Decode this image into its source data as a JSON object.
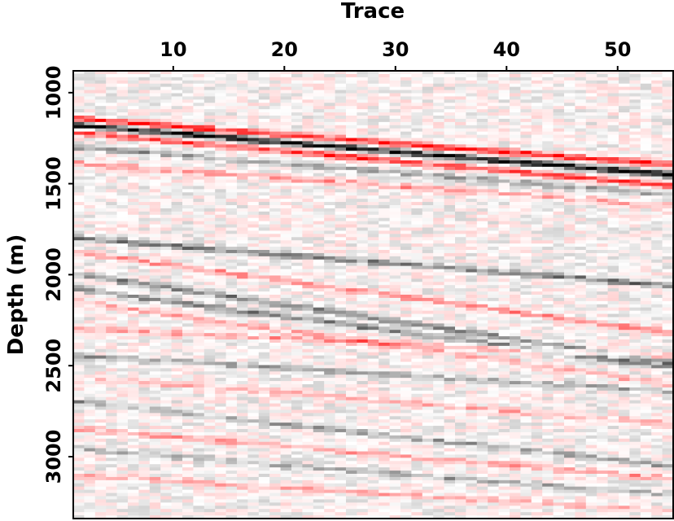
{
  "chart_data": {
    "type": "heatmap",
    "title": "",
    "xlabel": "Trace",
    "ylabel": "Depth (m)",
    "x_axis_position": "top",
    "xlim": [
      1,
      55
    ],
    "ylim": [
      3340,
      880
    ],
    "x_ticks": [
      10,
      20,
      30,
      40,
      50
    ],
    "y_ticks": [
      1000,
      1500,
      2000,
      2500,
      3000
    ],
    "x_tick_labels": [
      "10",
      "20",
      "30",
      "40",
      "50"
    ],
    "y_tick_labels": [
      "1000",
      "1500",
      "2000",
      "2500",
      "3000"
    ],
    "n_traces": 55,
    "colormap": {
      "negative": "#ff0000",
      "zero": "#ffffff",
      "positive": "#000000"
    },
    "reflectors": [
      {
        "d0": 1180,
        "d1": 1450,
        "amp": 1.0
      },
      {
        "d0": 1145,
        "d1": 1395,
        "amp": -0.85
      },
      {
        "d0": 1220,
        "d1": 1510,
        "amp": -0.75
      },
      {
        "d0": 1300,
        "d1": 1560,
        "amp": 0.35
      },
      {
        "d0": 1390,
        "d1": 1620,
        "amp": -0.35
      },
      {
        "d0": 1800,
        "d1": 2060,
        "amp": 0.5
      },
      {
        "d0": 1880,
        "d1": 2320,
        "amp": -0.45
      },
      {
        "d0": 2000,
        "d1": 2480,
        "amp": 0.5
      },
      {
        "d0": 2080,
        "d1": 2510,
        "amp": 0.45
      },
      {
        "d0": 2150,
        "d1": 2600,
        "amp": -0.3
      },
      {
        "d0": 2300,
        "d1": 2450,
        "amp": -0.35
      },
      {
        "d0": 2450,
        "d1": 2640,
        "amp": 0.35
      },
      {
        "d0": 2560,
        "d1": 2820,
        "amp": -0.3
      },
      {
        "d0": 2700,
        "d1": 3050,
        "amp": 0.35
      },
      {
        "d0": 2850,
        "d1": 3120,
        "amp": -0.35
      },
      {
        "d0": 2960,
        "d1": 3210,
        "amp": 0.3
      },
      {
        "d0": 3100,
        "d1": 3300,
        "amp": -0.3
      }
    ]
  }
}
